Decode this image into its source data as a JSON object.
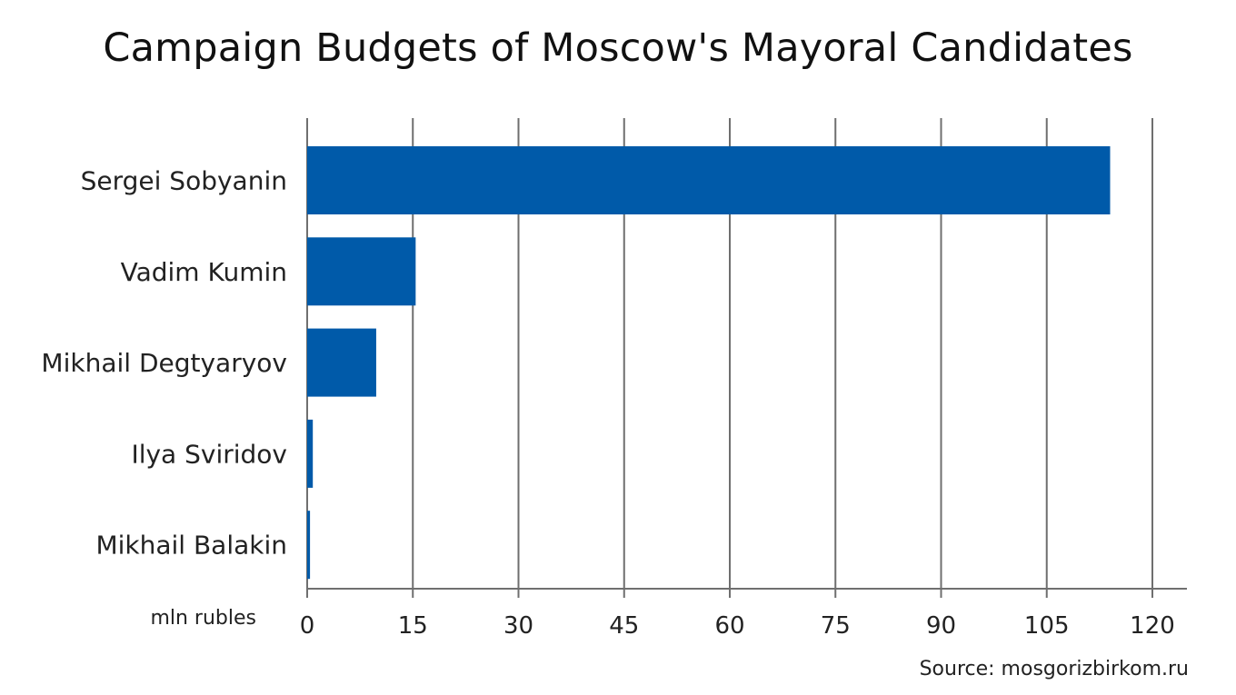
{
  "chart_data": {
    "type": "bar",
    "orientation": "horizontal",
    "title": "Campaign Budgets of Moscow's Mayoral Candidates",
    "categories": [
      "Sergei Sobyanin",
      "Vadim Kumin",
      "Mikhail Degtyaryov",
      "Ilya Sviridov",
      "Mikhail Balakin"
    ],
    "values": [
      114,
      15.4,
      9.8,
      0.8,
      0.4
    ],
    "xlabel": "mln rubles",
    "ylabel": "",
    "xlim": [
      0,
      120
    ],
    "xticks": [
      0,
      15,
      30,
      45,
      60,
      75,
      90,
      105,
      120
    ],
    "grid": "vertical",
    "bar_color": "#005aa9",
    "source": "Source: mosgorizbirkom.ru"
  }
}
